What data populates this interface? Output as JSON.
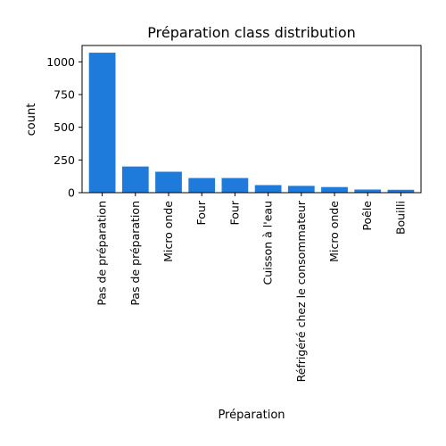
{
  "chart_data": {
    "type": "bar",
    "title": "Préparation class distribution",
    "xlabel": "Préparation",
    "ylabel": "count",
    "categories": [
      "Pas de préparation",
      "Pas de préparation",
      "Micro onde",
      "Four",
      "Four",
      "Cuisson à l'eau",
      "Réfrigéré chez le consommateur",
      "Micro onde",
      "Poêle",
      "Bouilli"
    ],
    "values": [
      1070,
      200,
      160,
      112,
      112,
      58,
      52,
      43,
      24,
      22
    ],
    "ylim": [
      0,
      1125
    ],
    "yticks": [
      0,
      250,
      500,
      750,
      1000
    ],
    "bar_color": "#1f7bdb",
    "grid": false
  }
}
